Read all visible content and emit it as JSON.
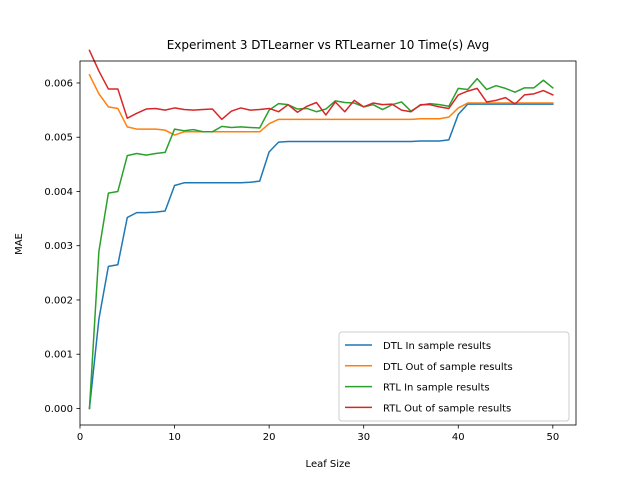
{
  "chart_data": {
    "type": "line",
    "title": "Experiment 3 DTLearner vs RTLearner 10 Time(s) Avg",
    "xlabel": "Leaf Size",
    "ylabel": "MAE",
    "xlim": [
      0,
      52.45
    ],
    "ylim": [
      -0.000305,
      0.006405
    ],
    "xticks": [
      0,
      10,
      20,
      30,
      40,
      50
    ],
    "xtick_labels": [
      "0",
      "10",
      "20",
      "30",
      "40",
      "50"
    ],
    "yticks": [
      0,
      0.001,
      0.002,
      0.003,
      0.004,
      0.005,
      0.006
    ],
    "ytick_labels": [
      "0.000",
      "0.001",
      "0.002",
      "0.003",
      "0.004",
      "0.005",
      "0.006"
    ],
    "grid": false,
    "legend_position": "lower-right",
    "x": [
      1,
      2,
      3,
      4,
      5,
      6,
      7,
      8,
      9,
      10,
      11,
      12,
      13,
      14,
      15,
      16,
      17,
      18,
      19,
      20,
      21,
      22,
      23,
      24,
      25,
      26,
      27,
      28,
      29,
      30,
      31,
      32,
      33,
      34,
      35,
      36,
      37,
      38,
      39,
      40,
      41,
      42,
      43,
      44,
      45,
      46,
      47,
      48,
      49,
      50
    ],
    "series": [
      {
        "name": "DTL In sample results",
        "color": "#1f77b4",
        "values": [
          0.0,
          0.00165,
          0.00262,
          0.00265,
          0.00352,
          0.00361,
          0.00361,
          0.00362,
          0.00364,
          0.00411,
          0.00416,
          0.00416,
          0.00416,
          0.00416,
          0.00416,
          0.00416,
          0.00416,
          0.00417,
          0.00419,
          0.00473,
          0.00491,
          0.00492,
          0.00492,
          0.00492,
          0.00492,
          0.00492,
          0.00492,
          0.00492,
          0.00492,
          0.00492,
          0.00492,
          0.00492,
          0.00492,
          0.00492,
          0.00492,
          0.00493,
          0.00493,
          0.00493,
          0.00495,
          0.00542,
          0.00561,
          0.00561,
          0.00561,
          0.00561,
          0.00561,
          0.00561,
          0.00561,
          0.00561,
          0.00561,
          0.00561
        ]
      },
      {
        "name": "DTL Out of sample results",
        "color": "#ff7f0e",
        "values": [
          0.00615,
          0.0058,
          0.00556,
          0.00553,
          0.00519,
          0.00515,
          0.00515,
          0.00515,
          0.00513,
          0.00504,
          0.0051,
          0.0051,
          0.0051,
          0.0051,
          0.0051,
          0.0051,
          0.0051,
          0.0051,
          0.0051,
          0.00525,
          0.00533,
          0.00533,
          0.00533,
          0.00533,
          0.00533,
          0.00533,
          0.00533,
          0.00533,
          0.00533,
          0.00533,
          0.00533,
          0.00533,
          0.00533,
          0.00533,
          0.00533,
          0.00534,
          0.00534,
          0.00534,
          0.00537,
          0.00554,
          0.00563,
          0.00563,
          0.00563,
          0.00563,
          0.00563,
          0.00563,
          0.00563,
          0.00563,
          0.00563,
          0.00563
        ]
      },
      {
        "name": "RTL In sample results",
        "color": "#2ca02c",
        "values": [
          0.0,
          0.0029,
          0.00397,
          0.004,
          0.00466,
          0.0047,
          0.00467,
          0.0047,
          0.00472,
          0.00515,
          0.00512,
          0.00514,
          0.0051,
          0.0051,
          0.0052,
          0.00518,
          0.00519,
          0.00518,
          0.00517,
          0.0055,
          0.00562,
          0.0056,
          0.00552,
          0.00553,
          0.00547,
          0.00552,
          0.00567,
          0.00564,
          0.00563,
          0.00556,
          0.0056,
          0.00551,
          0.0056,
          0.00565,
          0.00548,
          0.00559,
          0.00562,
          0.0056,
          0.00557,
          0.0059,
          0.00588,
          0.00608,
          0.00588,
          0.00595,
          0.0059,
          0.00583,
          0.00591,
          0.00591,
          0.00605,
          0.00591
        ]
      },
      {
        "name": "RTL Out of sample results",
        "color": "#d62728",
        "values": [
          0.0066,
          0.00622,
          0.00589,
          0.00589,
          0.00535,
          0.00544,
          0.00552,
          0.00553,
          0.0055,
          0.00554,
          0.00551,
          0.0055,
          0.00551,
          0.00552,
          0.00533,
          0.00548,
          0.00554,
          0.0055,
          0.00551,
          0.00553,
          0.00547,
          0.0056,
          0.00546,
          0.00557,
          0.00564,
          0.00541,
          0.00565,
          0.00547,
          0.00568,
          0.00556,
          0.00563,
          0.0056,
          0.00561,
          0.0055,
          0.00547,
          0.0056,
          0.0056,
          0.00556,
          0.00553,
          0.00578,
          0.00585,
          0.0059,
          0.00565,
          0.00568,
          0.00573,
          0.00561,
          0.00578,
          0.0058,
          0.00586,
          0.00578
        ]
      }
    ]
  }
}
